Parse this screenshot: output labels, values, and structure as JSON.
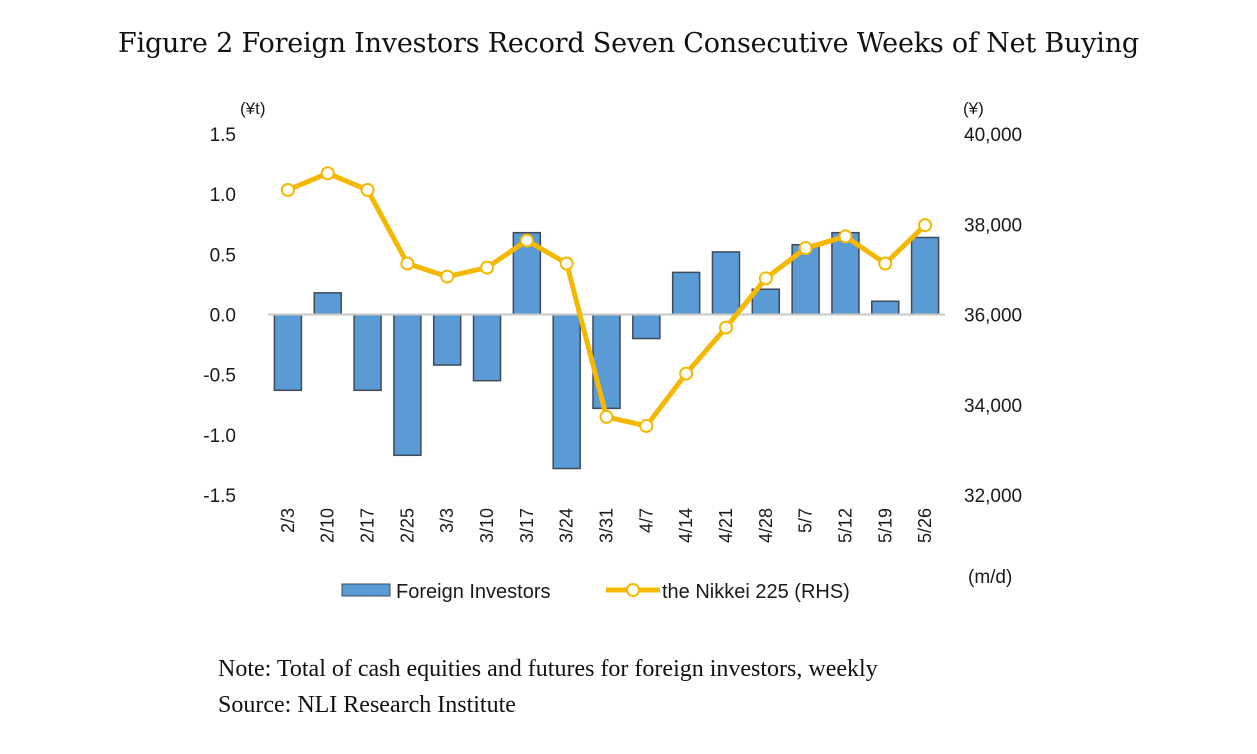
{
  "figure": {
    "title": "Figure 2 Foreign Investors Record Seven Consecutive Weeks of Net Buying",
    "note": "Note: Total of cash equities and futures for foreign investors, weekly",
    "source": "Source: NLI Research Institute"
  },
  "chart_data": {
    "type": "bar",
    "title": "Figure 2 Foreign Investors Record Seven Consecutive Weeks of Net Buying",
    "xlabel": "(m/d)",
    "ylabel": "(¥t)",
    "y2label": "(¥)",
    "categories": [
      "2/3",
      "2/10",
      "2/17",
      "2/25",
      "3/3",
      "3/10",
      "3/17",
      "3/24",
      "3/31",
      "4/7",
      "4/14",
      "4/21",
      "4/28",
      "5/7",
      "5/12",
      "5/19",
      "5/26"
    ],
    "ylim": [
      -1.5,
      1.5
    ],
    "yticks": [
      "1.5",
      "1.0",
      "0.5",
      "0.0",
      "-0.5",
      "-1.0",
      "-1.5"
    ],
    "ytick_values": [
      1.5,
      1.0,
      0.5,
      0.0,
      -0.5,
      -1.0,
      -1.5
    ],
    "y2lim": [
      32000,
      40000
    ],
    "y2ticks": [
      "40,000",
      "38,000",
      "36,000",
      "34,000",
      "32,000"
    ],
    "y2tick_values": [
      40000,
      38000,
      36000,
      34000,
      32000
    ],
    "grid": false,
    "legend_position": "bottom",
    "series": [
      {
        "name": "Foreign Investors",
        "type": "bar",
        "axis": "left",
        "color": "#5b9bd5",
        "edge_color": "#3f4a5a",
        "values": [
          -0.63,
          0.18,
          -0.63,
          -1.17,
          -0.42,
          -0.55,
          0.68,
          -1.28,
          -0.78,
          -0.2,
          0.35,
          0.52,
          0.21,
          0.58,
          0.68,
          0.11,
          0.64
        ]
      },
      {
        "name": "the Nikkei 225 (RHS)",
        "type": "line",
        "axis": "right",
        "color": "#f5b800",
        "marker": "open-circle",
        "values": [
          38760,
          39130,
          38760,
          37130,
          36840,
          37040,
          37640,
          37130,
          33730,
          33530,
          34690,
          35710,
          36800,
          37470,
          37730,
          37130,
          37980
        ]
      }
    ]
  }
}
